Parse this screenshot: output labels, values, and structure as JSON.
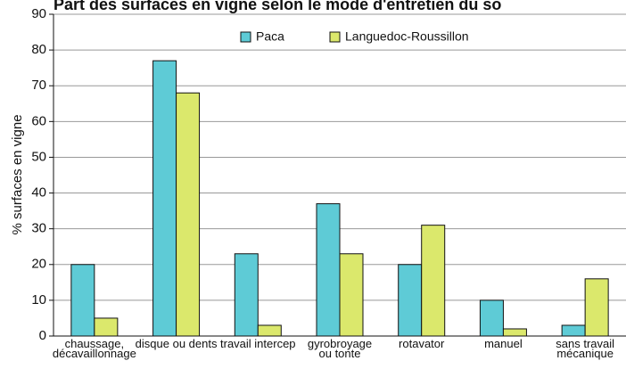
{
  "chart_data": {
    "type": "bar",
    "title": "Part des surfaces en vigne selon le mode d'entretien du so",
    "y_label": "% surfaces en vigne",
    "categories": [
      "chaussage,\ndécavaillonnage",
      "disque ou dents",
      "travail intercep",
      "gyrobroyage\nou tonte",
      "rotavator",
      "manuel",
      "sans travail\nmécanique"
    ],
    "series": [
      {
        "name": "Paca",
        "color": "#5ecbd6",
        "values": [
          20,
          77,
          23,
          37,
          20,
          10,
          3
        ]
      },
      {
        "name": "Languedoc-Roussillon",
        "color": "#dbe86c",
        "values": [
          5,
          68,
          3,
          23,
          31,
          2,
          16
        ]
      }
    ],
    "ylim": [
      0,
      90
    ],
    "yticks": [
      0,
      10,
      20,
      30,
      40,
      50,
      60,
      70,
      80,
      90
    ],
    "grid": true
  }
}
